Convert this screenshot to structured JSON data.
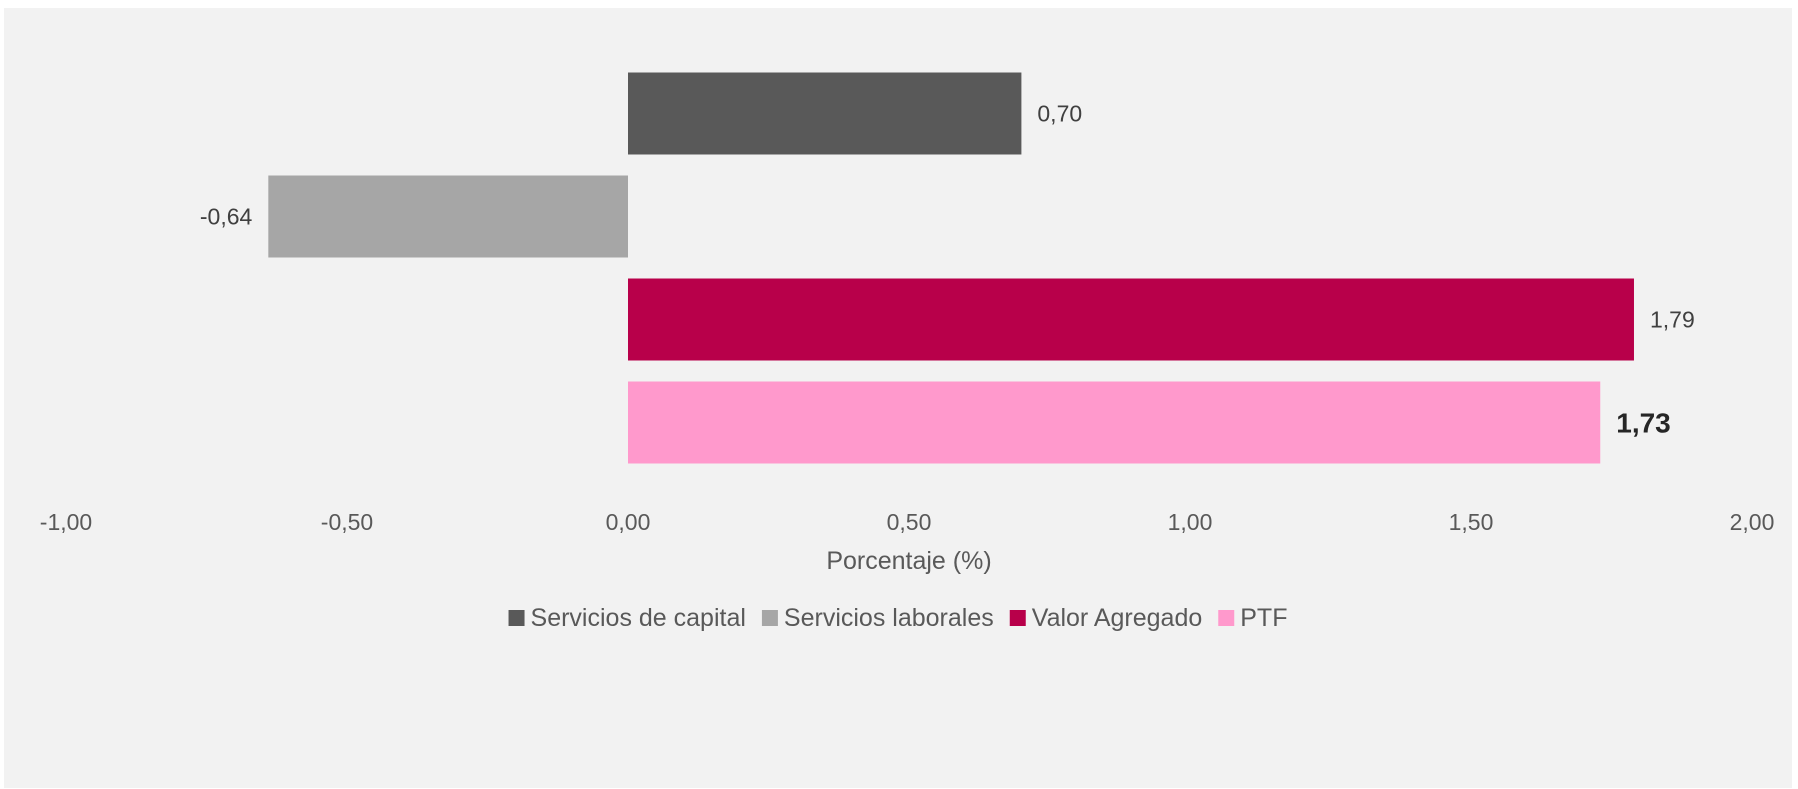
{
  "chart_data": {
    "type": "bar",
    "orientation": "horizontal",
    "categories": [
      "Servicios de capital",
      "Servicios laborales",
      "Valor Agregado",
      "PTF"
    ],
    "values": [
      0.7,
      -0.64,
      1.79,
      1.73
    ],
    "value_labels": [
      "0,70",
      "-0,64",
      "1,79",
      "1,73"
    ],
    "label_bold": [
      false,
      false,
      false,
      true
    ],
    "colors": [
      "#595959",
      "#a6a6a6",
      "#b8004a",
      "#ff99cc"
    ],
    "xlim": [
      -1.0,
      2.0
    ],
    "xticks": [
      -1.0,
      -0.5,
      0.0,
      0.5,
      1.0,
      1.5,
      2.0
    ],
    "xtick_labels": [
      "-1,00",
      "-0,50",
      "0,00",
      "0,50",
      "1,00",
      "1,50",
      "2,00"
    ],
    "xlabel": "Porcentaje (%)",
    "ylabel": "",
    "title": "",
    "grid": false,
    "legend_position": "bottom",
    "legend": [
      {
        "name": "Servicios de capital",
        "color": "#595959"
      },
      {
        "name": "Servicios laborales",
        "color": "#a6a6a6"
      },
      {
        "name": "Valor Agregado",
        "color": "#b8004a"
      },
      {
        "name": "PTF",
        "color": "#ff99cc"
      }
    ]
  }
}
